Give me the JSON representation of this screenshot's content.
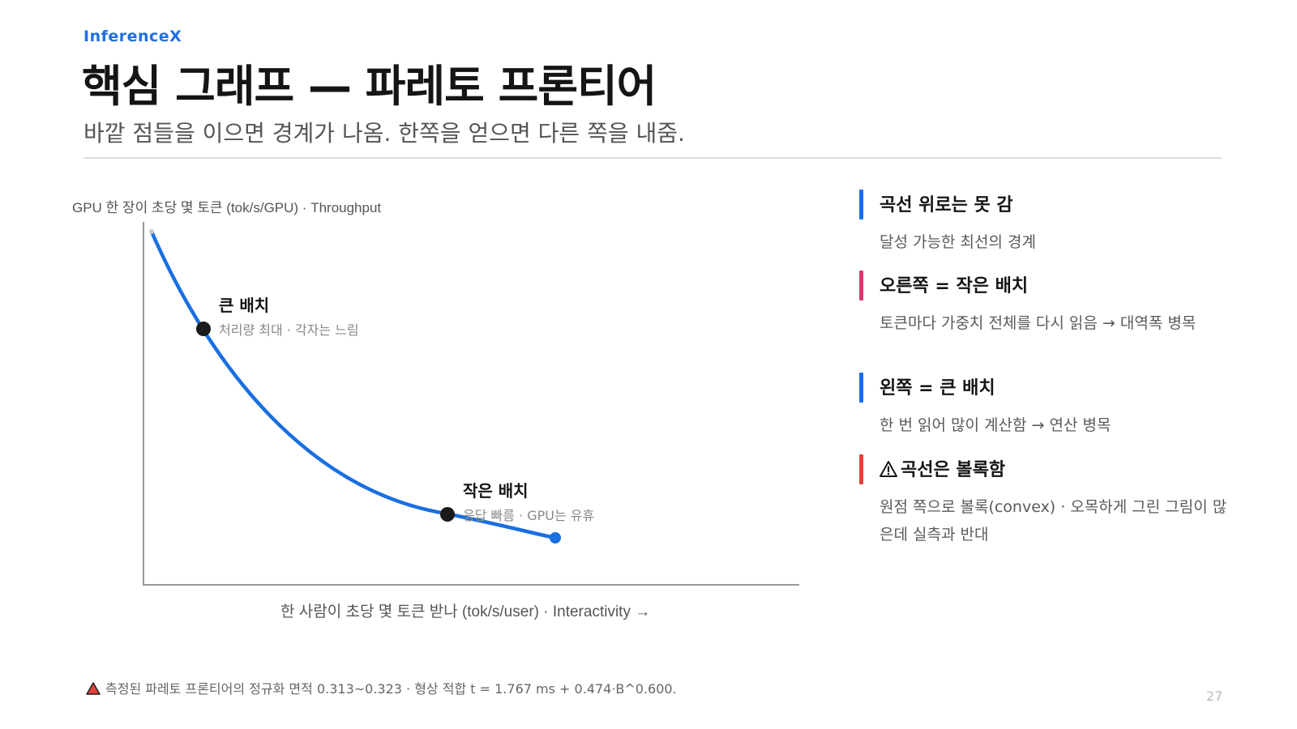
{
  "header": {
    "brand": "InferenceX",
    "title": "핵심 그래프 — 파레토 프론티어",
    "subtitle": "바깥 점들을 이으면 경계가 나옴. 한쪽을 얻으면 다른 쪽을 내줌."
  },
  "chart_data": {
    "type": "line",
    "ylabel": "GPU 한 장이 초당 몇 토큰  (tok/s/GPU)  ·  Throughput",
    "xlabel": "한 사람이 초당 몇 토큰 받나  (tok/s/user)  ·  Interactivity →",
    "colors": {
      "curve": "#1a6fe0",
      "axis": "#999999",
      "dot": "#1a1a1a"
    },
    "annotations": [
      {
        "name": "large-batch",
        "label": "큰 배치",
        "sub": "처리량 최대 · 각자는 느림"
      },
      {
        "name": "small-batch",
        "label": "작은 배치",
        "sub": "응답 빠름 · GPU는 유휴"
      }
    ]
  },
  "side": {
    "items": [
      {
        "head": "곡선 위로는 못 감",
        "desc": "달성 가능한 최선의 경계",
        "color": "#1a6fe0"
      },
      {
        "head": "오른쪽 = 작은 배치",
        "desc": "토큰마다 가중치 전체를 다시 읽음 → 대역폭 병목",
        "color": "#d63a6b"
      },
      {
        "head": "왼쪽 = 큰 배치",
        "desc": "한 번 읽어 많이 계산함 → 연산 병목",
        "color": "#1a6fe0"
      },
      {
        "head": "곡선은 볼록함",
        "desc": "원점 쪽으로 볼록(convex) · 오목하게 그린 그림이 많은데 실측과 반대",
        "color": "#e0413a",
        "icon": "warning-icon"
      }
    ]
  },
  "footer": {
    "note": "측정된 파레토 프론티어의 정규화 면적 0.313~0.323 · 형상 적합 t = 1.767 ms + 0.474·B^0.600.",
    "note_icon": "warning-triangle-icon",
    "page": "27"
  }
}
